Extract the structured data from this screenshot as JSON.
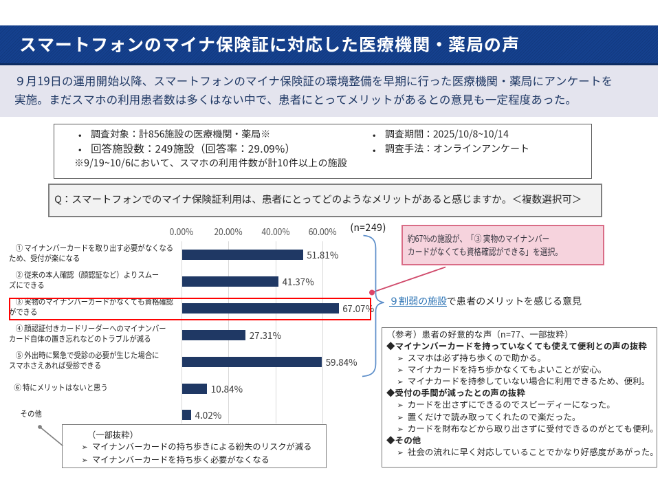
{
  "slide": {
    "title": "スマートフォンのマイナ保険証に対応した医療機関・薬局の声",
    "lede_line1": "９月19日の運用開始以降、スマートフォンのマイナ保険証の環境整備を早期に行った医療機関・薬局にアンケートを",
    "lede_line2": "実施。まだスマホの利用患者数は多くはない中で、患者にとってメリットがあるとの意見も一定程度あった。"
  },
  "survey": {
    "bullet": "•",
    "left_items": [
      "調査対象：計856施設の医療機関・薬局※",
      "回答施設数：249施設（回答率：29.09%）"
    ],
    "right_items": [
      "調査期間：2025/10/8~10/14",
      "調査手法：オンラインアンケート"
    ],
    "footnote": "※9/19~10/6において、スマホの利用件数が計10件以上の施設"
  },
  "question": {
    "text": "Q：スマートフォンでのマイナ保険証利用は、患者にとってどのようなメリットがあると感じますか。＜複数選択可＞"
  },
  "chart_data": {
    "type": "bar",
    "orientation": "horizontal",
    "n_label": "(n=249)",
    "x_ticks": [
      "0.00%",
      "20.00%",
      "40.00%",
      "60.00%"
    ],
    "x_tick_values": [
      0,
      20,
      40,
      60
    ],
    "xlim": [
      0,
      80
    ],
    "categories": [
      "① マイナンバーカードを取り出す必要がなくなる\nため、受付が楽になる",
      "② 従来の本人確認（顔認証など）よりスムー\nズにできる",
      "③ 実物のマイナンバーカードがなくても資格確認\nができる",
      "④ 顔認証付きカードリーダーへのマイナンバー\nカード自体の置き忘れなどのトラブルが減る",
      "⑤ 外出時に緊急で受診の必要が生じた場合に\nスマホさえあれば受診できる",
      "⑥ 特にメリットはないと思う",
      "その他"
    ],
    "values": [
      51.81,
      41.37,
      67.07,
      27.31,
      59.84,
      10.84,
      4.02
    ],
    "value_labels": [
      "51.81%",
      "41.37%",
      "67.07%",
      "27.31%",
      "59.84%",
      "10.84%",
      "4.02%"
    ],
    "bar_color": "#1F3864",
    "highlighted_index": 2
  },
  "annotations": {
    "highlight_note": "約67%の施設が、「③ 実物のマイナンバー\nカードがなくても資格確認ができる」を選択。",
    "brace_note_link": "９割弱の施設",
    "brace_note_rest": "で患者のメリットを感じる意見",
    "other_note": {
      "title": "（一部抜粋）",
      "arrow": "➢",
      "items": [
        "マイナンバーカードの持ち歩きによる紛失のリスクが減る",
        "マイナンバーカードを持ち歩く必要がなくなる"
      ]
    }
  },
  "reference_box": {
    "title": "（参考）患者の好意的な声（n=77、一部抜粋）",
    "arrow": "➢",
    "sections": [
      {
        "heading": "◆マイナンバーカードを持っていなくても使えて便利との声の抜粋",
        "items": [
          "スマホは必ず持ち歩くので助かる。",
          "マイナカードを持ち歩かなくてもよいことが安心。",
          "マイナカードを持参していない場合に利用できるため、便利。"
        ]
      },
      {
        "heading": "◆受付の手間が減ったとの声の抜粋",
        "items": [
          "カードを出さずにできるのでスピーディーになった。",
          "置くだけで読み取ってくれたので楽だった。",
          "カードを財布などから取り出さずに受付できるのがとても便利。"
        ]
      },
      {
        "heading": "◆その他",
        "items": [
          "社会の流れに早く対応していることでかなり好感度があがった。"
        ]
      }
    ]
  },
  "colors": {
    "title_bar_blue": "#15418F",
    "title_bar_stripe": "#0F3578",
    "title_bar_edge": "#0D2C62",
    "lede_bg": "#E4E4EE",
    "lede_text": "#1F3864",
    "bar_navy": "#1F3864",
    "grid_gray": "#D9D9D9",
    "highlight_red": "#FF0000",
    "pink_fill": "#F6D3DD",
    "pink_border": "#D96C86",
    "pink_line": "#D04A6B",
    "brace_blue": "#5B8DC9",
    "link_blue": "#2E74B5",
    "box_border_gray": "#7F7F7F",
    "text_dark": "#262626"
  }
}
